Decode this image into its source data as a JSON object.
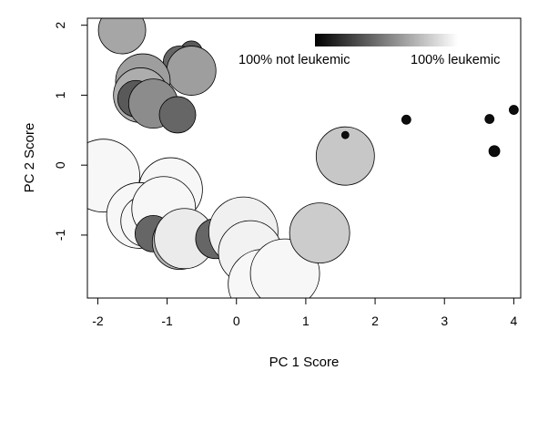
{
  "chart_data": {
    "type": "scatter",
    "xlabel": "PC 1 Score",
    "ylabel": "PC 2 Score",
    "xlim": [
      -2.15,
      4.1
    ],
    "ylim": [
      -1.9,
      2.1
    ],
    "x_ticks": [
      -2,
      -1,
      0,
      1,
      2,
      3,
      4
    ],
    "y_ticks": [
      -1,
      0,
      1,
      2
    ],
    "legend": {
      "placement": "top-right",
      "label_left": "100% not leukemic",
      "label_right": "100% leukemic",
      "gradient_from": "#000000",
      "gradient_to": "#ffffff"
    },
    "encoding": "fill gray level = 1 - leukemic fraction (0 black, 1 white); circle size varies by point",
    "points": [
      {
        "x": -1.65,
        "y": 1.93,
        "size": 26,
        "gray": 0.65
      },
      {
        "x": -0.65,
        "y": 1.62,
        "size": 12,
        "gray": 0.35
      },
      {
        "x": -0.82,
        "y": 1.47,
        "size": 18,
        "gray": 0.4
      },
      {
        "x": -0.65,
        "y": 1.35,
        "size": 27,
        "gray": 0.62
      },
      {
        "x": -1.35,
        "y": 1.2,
        "size": 30,
        "gray": 0.62
      },
      {
        "x": -1.38,
        "y": 1.0,
        "size": 30,
        "gray": 0.68
      },
      {
        "x": -1.45,
        "y": 0.95,
        "size": 20,
        "gray": 0.35
      },
      {
        "x": -1.2,
        "y": 0.88,
        "size": 27,
        "gray": 0.55
      },
      {
        "x": -0.85,
        "y": 0.72,
        "size": 20,
        "gray": 0.4
      },
      {
        "x": -1.92,
        "y": -0.15,
        "size": 40,
        "gray": 0.97
      },
      {
        "x": -0.95,
        "y": -0.35,
        "size": 35,
        "gray": 0.97
      },
      {
        "x": -1.4,
        "y": -0.72,
        "size": 36,
        "gray": 0.97
      },
      {
        "x": -1.3,
        "y": -0.8,
        "size": 28,
        "gray": 0.97
      },
      {
        "x": -1.05,
        "y": -0.62,
        "size": 35,
        "gray": 0.97
      },
      {
        "x": -1.2,
        "y": -0.98,
        "size": 20,
        "gray": 0.4
      },
      {
        "x": -0.82,
        "y": -1.1,
        "size": 30,
        "gray": 0.7
      },
      {
        "x": -0.75,
        "y": -1.05,
        "size": 33,
        "gray": 0.92
      },
      {
        "x": -0.3,
        "y": -1.05,
        "size": 22,
        "gray": 0.4
      },
      {
        "x": 0.1,
        "y": -0.95,
        "size": 38,
        "gray": 0.94
      },
      {
        "x": 0.2,
        "y": -1.25,
        "size": 35,
        "gray": 0.95
      },
      {
        "x": 0.38,
        "y": -1.7,
        "size": 38,
        "gray": 0.97
      },
      {
        "x": 0.7,
        "y": -1.55,
        "size": 38,
        "gray": 0.97
      },
      {
        "x": 1.2,
        "y": -0.97,
        "size": 33,
        "gray": 0.8
      },
      {
        "x": 1.57,
        "y": 0.13,
        "size": 32,
        "gray": 0.78
      },
      {
        "x": 1.57,
        "y": 0.43,
        "size": 4,
        "gray": 0.05
      },
      {
        "x": 2.45,
        "y": 0.65,
        "size": 5,
        "gray": 0.05
      },
      {
        "x": 3.65,
        "y": 0.66,
        "size": 5,
        "gray": 0.05
      },
      {
        "x": 4.0,
        "y": 0.79,
        "size": 5,
        "gray": 0.05
      },
      {
        "x": 3.72,
        "y": 0.2,
        "size": 6,
        "gray": 0.05
      }
    ]
  }
}
